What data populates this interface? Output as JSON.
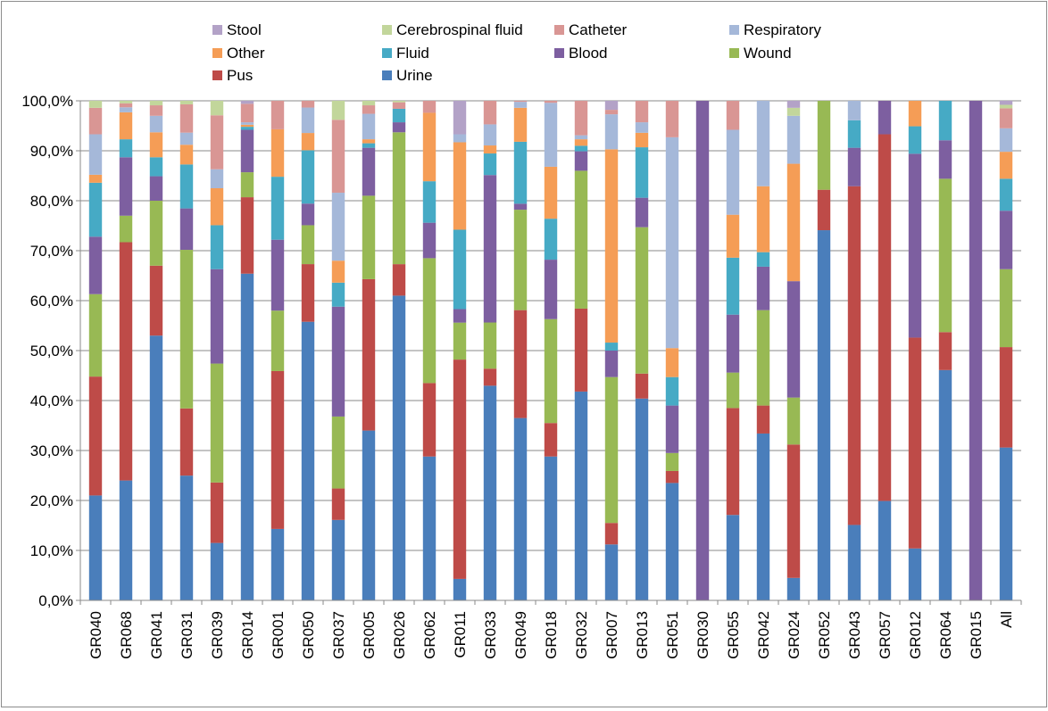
{
  "chart_data": {
    "type": "bar",
    "stacked": true,
    "percent": true,
    "ylim": [
      0,
      100
    ],
    "grid": "horizontal",
    "legend_position": "top",
    "categories": [
      "GR040",
      "GR068",
      "GR041",
      "GR031",
      "GR039",
      "GR014",
      "GR001",
      "GR050",
      "GR037",
      "GR005",
      "GR026",
      "GR062",
      "GR011",
      "GR033",
      "GR049",
      "GR018",
      "GR032",
      "GR007",
      "GR013",
      "GR051",
      "GR030",
      "GR055",
      "GR042",
      "GR024",
      "GR052",
      "GR043",
      "GR057",
      "GR012",
      "GR064",
      "GR015",
      "All"
    ],
    "y_ticks": [
      "0,0%",
      "10,0%",
      "20,0%",
      "30,0%",
      "40,0%",
      "50,0%",
      "60,0%",
      "70,0%",
      "80,0%",
      "90,0%",
      "100,0%"
    ],
    "series": [
      {
        "name": "Urine",
        "color": "#4a7ebb",
        "values": [
          21,
          24,
          53,
          24.7,
          11.5,
          65.4,
          14.3,
          58,
          16.1,
          34,
          61,
          28.8,
          4.3,
          42.8,
          36.5,
          28.8,
          41.8,
          11.2,
          40.4,
          23.5,
          0,
          17.1,
          33.4,
          4.5,
          74.1,
          15.1,
          19.9,
          10.4,
          46.1,
          0,
          30.6
        ]
      },
      {
        "name": "Pus",
        "color": "#be4b48",
        "values": [
          23.8,
          47.7,
          14,
          13.3,
          12.1,
          15.3,
          31.6,
          12,
          6.3,
          30.3,
          6.3,
          14.7,
          43.9,
          3.4,
          21.6,
          6.7,
          16.6,
          4.3,
          5,
          2.4,
          0,
          21.4,
          5.6,
          26.7,
          8.1,
          67.8,
          73.4,
          42.2,
          7.6,
          0,
          20.1
        ]
      },
      {
        "name": "Wound",
        "color": "#98b954",
        "values": [
          16.5,
          5.3,
          13,
          31.4,
          23.8,
          5,
          12.1,
          8.1,
          14.4,
          16.7,
          26.4,
          25,
          7.4,
          9.2,
          20.1,
          20.8,
          27.6,
          29.2,
          29.3,
          3.6,
          0,
          7.1,
          19.1,
          9.4,
          17.8,
          0,
          0,
          0,
          30.7,
          0,
          15.6
        ]
      },
      {
        "name": "Blood",
        "color": "#7d5fa0",
        "values": [
          11.5,
          11.7,
          4.9,
          8.2,
          18.9,
          8.5,
          14.2,
          4.5,
          22,
          9.6,
          2,
          7.1,
          2.7,
          29.4,
          1.2,
          11.9,
          3.9,
          5.3,
          5.9,
          9.5,
          100,
          11.6,
          8.7,
          23.3,
          0,
          7.7,
          6.7,
          36.8,
          7.7,
          100,
          11.7
        ]
      },
      {
        "name": "Fluid",
        "color": "#46aac5",
        "values": [
          10.8,
          3.6,
          3.8,
          8.7,
          8.8,
          0.6,
          12.6,
          11.1,
          4.8,
          0.9,
          2.7,
          8.3,
          15.9,
          4.3,
          12.4,
          8.2,
          1.1,
          1.6,
          10.1,
          5.7,
          0,
          11.4,
          2.9,
          0,
          0,
          5.5,
          0,
          5.5,
          7.9,
          0,
          6.4
        ]
      },
      {
        "name": "Other",
        "color": "#f59d56",
        "values": [
          1.6,
          5.4,
          5,
          3.9,
          7.4,
          0.4,
          9.5,
          3.6,
          4.4,
          0.8,
          0,
          13.7,
          17.5,
          1.6,
          6.8,
          10.4,
          1.3,
          38.7,
          2.9,
          5.8,
          0,
          8.6,
          13.2,
          23.5,
          0,
          0,
          0,
          5.1,
          0,
          0,
          5.4
        ]
      },
      {
        "name": "Respiratory",
        "color": "#a5b8d9",
        "values": [
          8.1,
          1,
          3.3,
          2.4,
          3.8,
          0.5,
          0,
          5.3,
          13.6,
          5.1,
          0,
          0,
          1.6,
          4.2,
          1.2,
          12.8,
          0.8,
          7,
          2.1,
          42.2,
          0,
          17,
          17.1,
          9.6,
          0,
          3.9,
          0,
          0,
          0,
          0,
          4.7
        ]
      },
      {
        "name": "Catheter",
        "color": "#d99694",
        "values": [
          5.3,
          0.8,
          2.1,
          5.6,
          10.8,
          3.7,
          5.7,
          1.4,
          14.6,
          1.7,
          1.3,
          2.4,
          0,
          4.7,
          0.2,
          0.4,
          6.9,
          0.9,
          4.3,
          7.3,
          0,
          5.8,
          0,
          0,
          0,
          0,
          0,
          0,
          0,
          0,
          4
        ]
      },
      {
        "name": "Cerebrospinal fluid",
        "color": "#c2d69b",
        "values": [
          1.4,
          0.5,
          0.9,
          0.7,
          2.9,
          0,
          0,
          0,
          3.8,
          0.9,
          0.3,
          0,
          0,
          0,
          0,
          0,
          0,
          0,
          0,
          0,
          0,
          0,
          0,
          1.6,
          0,
          0,
          0,
          0,
          0,
          0,
          0.7
        ]
      },
      {
        "name": "Stool",
        "color": "#b3a2c7",
        "values": [
          0,
          0,
          0,
          0,
          0,
          0.6,
          0,
          0,
          0,
          0,
          0,
          0,
          6.7,
          0,
          0,
          0,
          0,
          1.8,
          0,
          0,
          0,
          0,
          0,
          1.4,
          0,
          0,
          0,
          0,
          0,
          0,
          0.8
        ]
      }
    ],
    "legend_order": [
      "Stool",
      "Cerebrospinal fluid",
      "Catheter",
      "Respiratory",
      "Other",
      "Fluid",
      "Blood",
      "Wound",
      "Pus",
      "Urine"
    ]
  }
}
